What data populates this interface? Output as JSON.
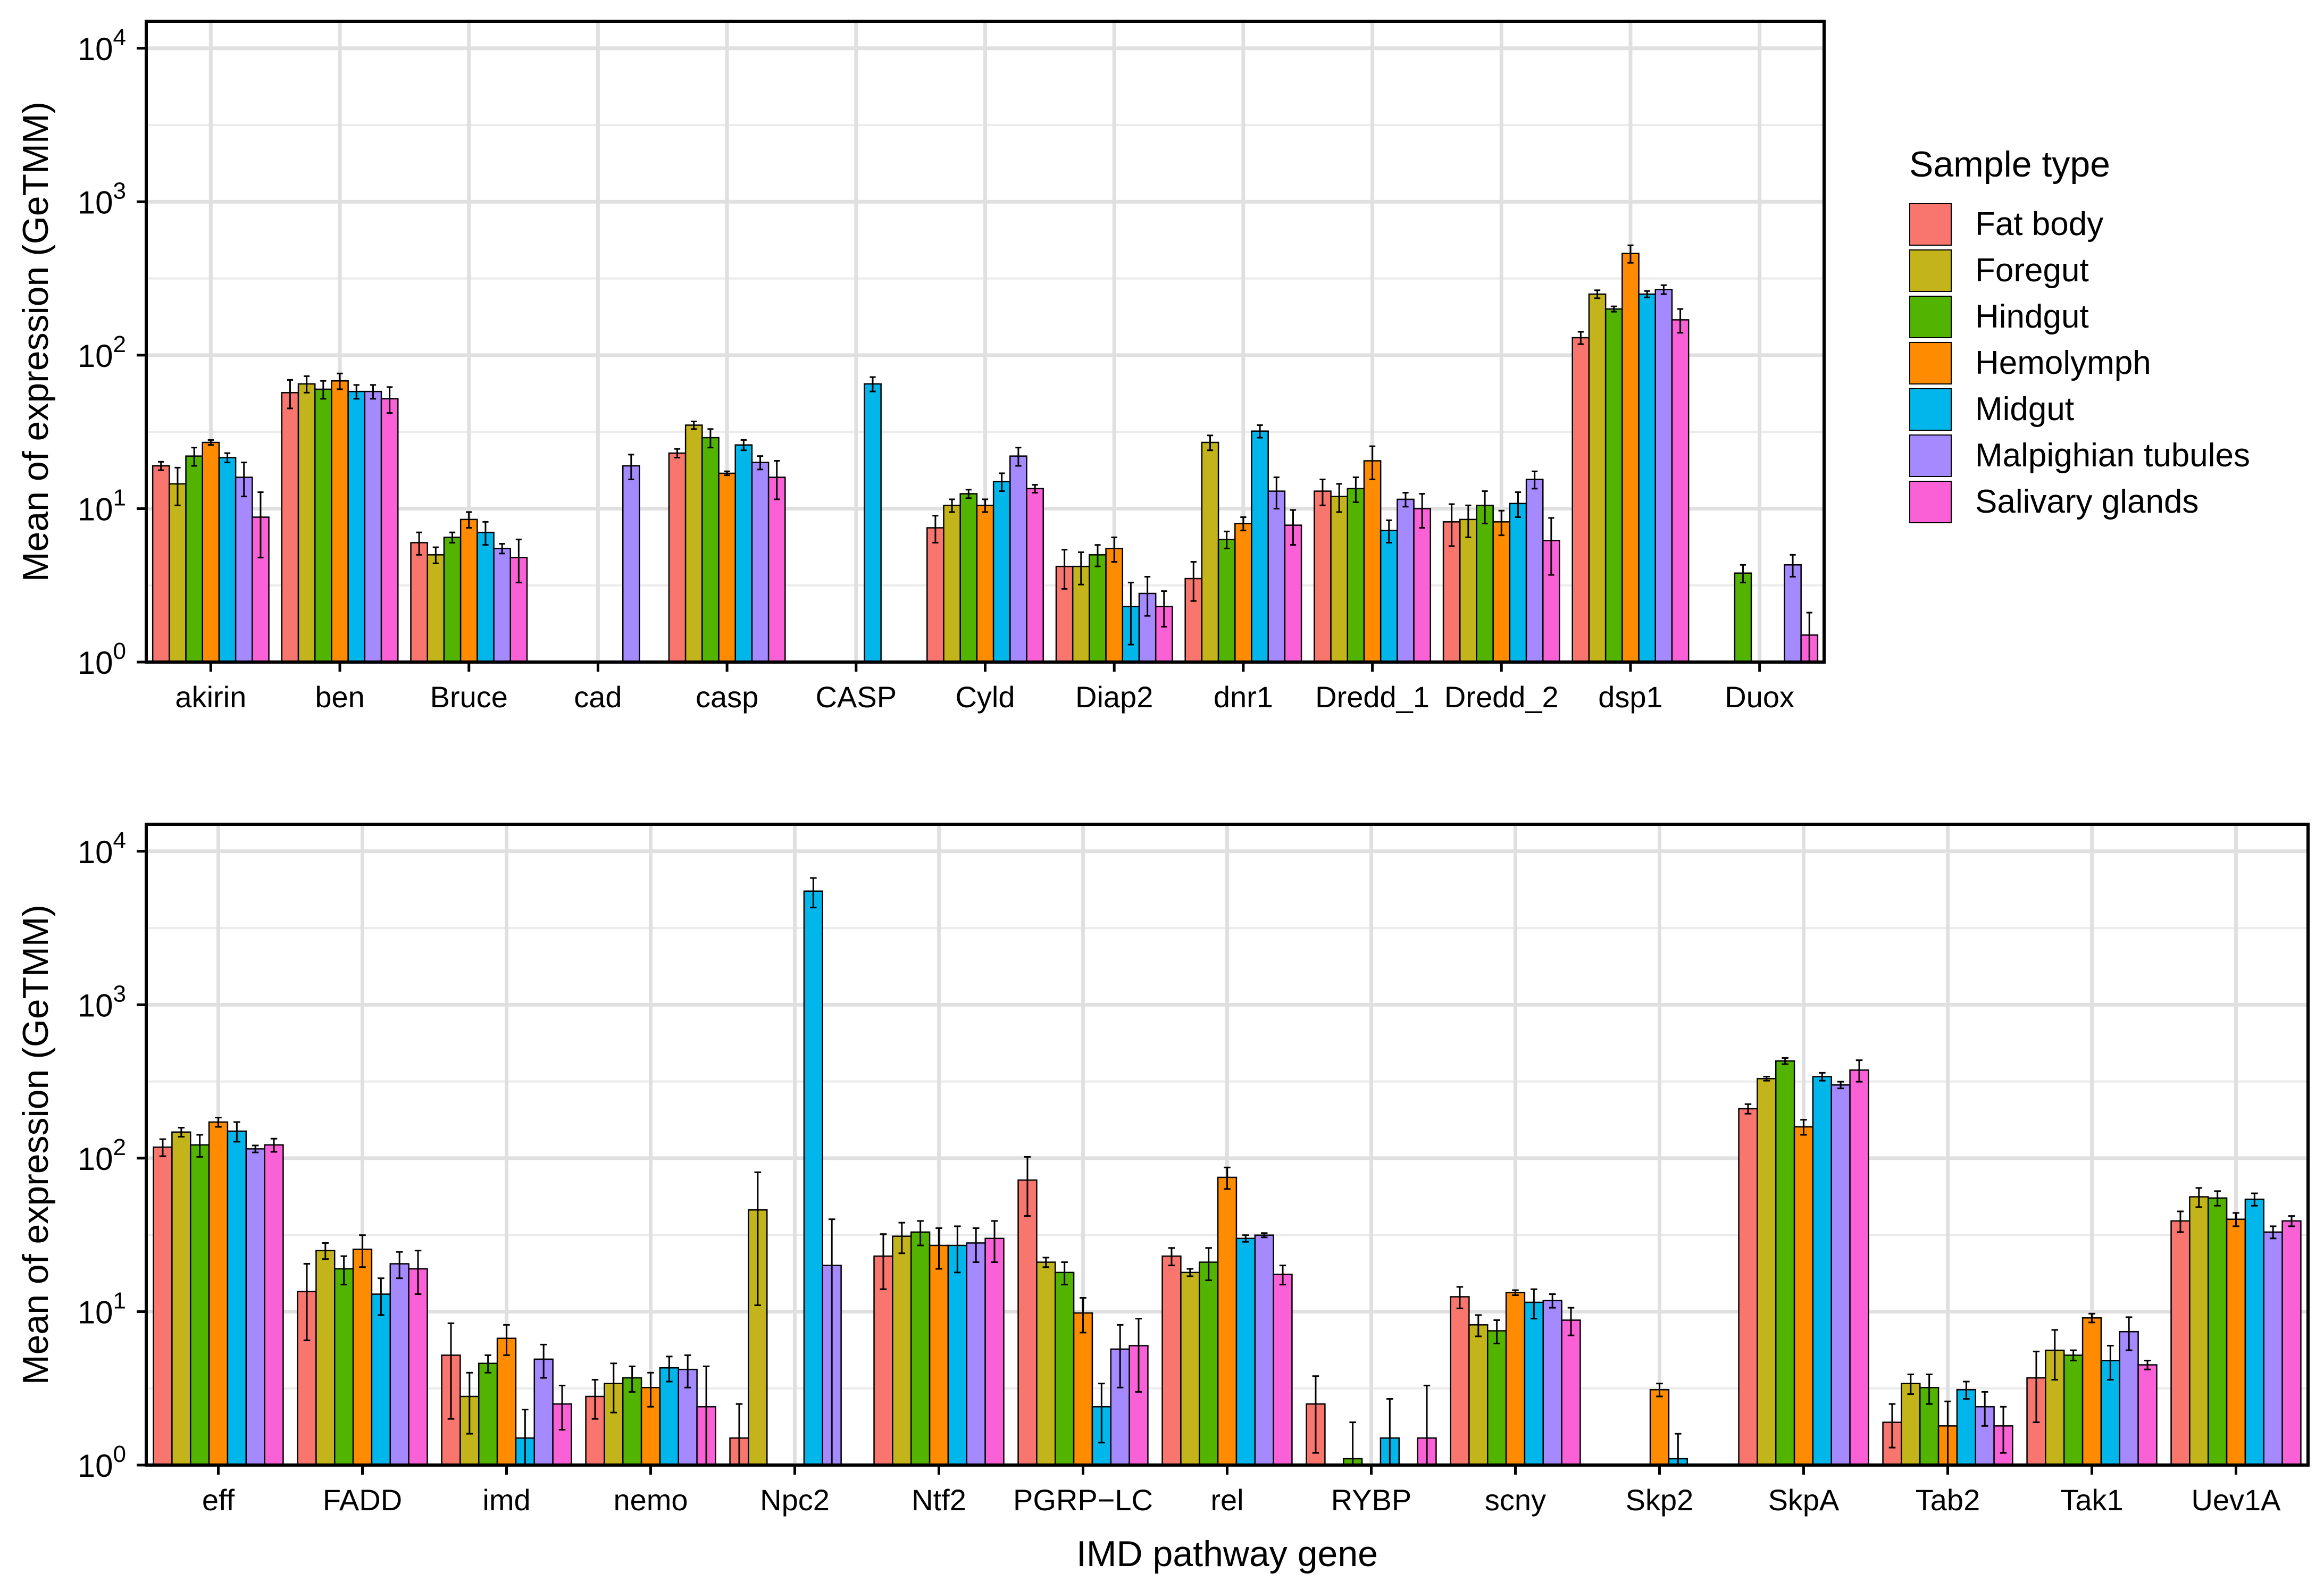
{
  "chart_data": [
    {
      "type": "bar",
      "panel": "top",
      "scale": "log10",
      "ylabel": "Mean of expression (GeTMM)",
      "xlabel": "",
      "ylim": [
        1,
        15000
      ],
      "y_ticks": [
        {
          "value": 1,
          "base": "10",
          "exp": "0"
        },
        {
          "value": 10,
          "base": "10",
          "exp": "1"
        },
        {
          "value": 100,
          "base": "10",
          "exp": "2"
        },
        {
          "value": 1000,
          "base": "10",
          "exp": "3"
        },
        {
          "value": 10000,
          "base": "10",
          "exp": "4"
        }
      ],
      "grid": true,
      "categories": [
        "akirin",
        "ben",
        "Bruce",
        "cad",
        "casp",
        "CASP",
        "Cyld",
        "Diap2",
        "dnr1",
        "Dredd_1",
        "Dredd_2",
        "dsp1",
        "Duox"
      ],
      "series": [
        {
          "name": "Fat body",
          "values": [
            19,
            57,
            6,
            null,
            23,
            null,
            7.5,
            4.2,
            3.5,
            13,
            8.2,
            130,
            null
          ],
          "errors": [
            1.2,
            12,
            1,
            null,
            1.5,
            null,
            1.5,
            1.2,
            1,
            2.5,
            2.5,
            12,
            null
          ]
        },
        {
          "name": "Foregut",
          "values": [
            14.5,
            65,
            5,
            null,
            35,
            null,
            10.5,
            4.2,
            27,
            12,
            8.5,
            250,
            null
          ],
          "errors": [
            4,
            8,
            0.6,
            null,
            2,
            null,
            1,
            1,
            3,
            2.5,
            2,
            15,
            null
          ]
        },
        {
          "name": "Hindgut",
          "values": [
            22,
            60,
            6.5,
            null,
            29,
            null,
            12.5,
            5,
            6.3,
            13.5,
            10.5,
            200,
            3.8
          ],
          "errors": [
            3,
            8,
            0.5,
            null,
            4,
            null,
            0.8,
            0.8,
            0.8,
            2.5,
            2.5,
            8,
            0.5
          ]
        },
        {
          "name": "Hemolymph",
          "values": [
            27,
            68,
            8.5,
            null,
            17,
            null,
            10.5,
            5.5,
            8,
            20.5,
            8.2,
            460,
            null
          ],
          "errors": [
            1,
            8,
            1,
            null,
            0.5,
            null,
            1,
            1,
            0.8,
            5,
            1.5,
            60,
            null
          ]
        },
        {
          "name": "Midgut",
          "values": [
            21.5,
            58,
            7,
            null,
            26,
            65,
            15,
            2.3,
            32,
            7.2,
            10.8,
            250,
            null
          ],
          "errors": [
            1.5,
            6,
            1.2,
            null,
            2,
            7,
            2,
            1,
            3,
            1.2,
            2,
            12,
            null
          ]
        },
        {
          "name": "Malpighian tubules",
          "values": [
            16,
            58,
            5.5,
            19,
            20,
            null,
            22,
            2.8,
            13,
            11.5,
            15.5,
            268,
            4.3
          ],
          "errors": [
            4,
            6,
            0.4,
            3.5,
            2,
            null,
            3,
            0.8,
            3,
            1.2,
            2,
            18,
            0.7
          ]
        },
        {
          "name": "Salivary glands",
          "values": [
            8.8,
            52,
            4.8,
            null,
            16,
            null,
            13.5,
            2.3,
            7.8,
            10,
            6.2,
            170,
            1.5
          ],
          "errors": [
            4,
            10,
            1.5,
            null,
            4.5,
            null,
            0.8,
            0.6,
            2,
            2.5,
            2.5,
            30,
            0.6
          ]
        }
      ]
    },
    {
      "type": "bar",
      "panel": "bottom",
      "scale": "log10",
      "ylabel": "Mean of expression (GeTMM)",
      "xlabel": "IMD pathway gene",
      "ylim": [
        1,
        15000
      ],
      "y_ticks": [
        {
          "value": 1,
          "base": "10",
          "exp": "0"
        },
        {
          "value": 10,
          "base": "10",
          "exp": "1"
        },
        {
          "value": 100,
          "base": "10",
          "exp": "2"
        },
        {
          "value": 1000,
          "base": "10",
          "exp": "3"
        },
        {
          "value": 10000,
          "base": "10",
          "exp": "4"
        }
      ],
      "grid": true,
      "categories": [
        "eff",
        "FADD",
        "imd",
        "nemo",
        "Npc2",
        "Ntf2",
        "PGRP−LC",
        "rel",
        "RYBP",
        "scny",
        "Skp2",
        "SkpA",
        "Tab2",
        "Tak1",
        "Uev1A"
      ],
      "series": [
        {
          "name": "Fat body",
          "values": [
            118,
            13.5,
            5.2,
            2.8,
            1.5,
            23,
            72,
            23,
            2.5,
            12.5,
            null,
            210,
            1.9,
            3.7,
            39
          ],
          "errors": [
            15,
            7,
            3.2,
            0.8,
            1,
            9,
            30,
            3,
            1.3,
            2,
            null,
            15,
            0.6,
            1.8,
            6
          ]
        },
        {
          "name": "Foregut",
          "values": [
            148,
            25,
            2.8,
            3.4,
            46,
            31,
            21,
            18,
            null,
            8.2,
            null,
            330,
            3.4,
            5.6,
            56
          ],
          "errors": [
            10,
            3,
            1.2,
            1.2,
            35,
            7,
            1.5,
            1,
            null,
            1.3,
            null,
            10,
            0.5,
            2,
            8
          ]
        },
        {
          "name": "Hindgut",
          "values": [
            122,
            19,
            4.6,
            3.7,
            null,
            33,
            18,
            21,
            1.1,
            7.5,
            null,
            430,
            3.2,
            5.2,
            55
          ],
          "errors": [
            20,
            4,
            0.6,
            0.7,
            null,
            6,
            3,
            5,
            0.8,
            1.3,
            null,
            20,
            0.7,
            0.4,
            6
          ]
        },
        {
          "name": "Hemolymph",
          "values": [
            172,
            25.5,
            6.7,
            3.2,
            null,
            27,
            9.8,
            75,
            null,
            13.3,
            3.1,
            160,
            1.8,
            9.1,
            40
          ],
          "errors": [
            12,
            6,
            1.5,
            0.8,
            null,
            8,
            2.5,
            12,
            null,
            0.5,
            0.3,
            18,
            0.8,
            0.6,
            4
          ]
        },
        {
          "name": "Midgut",
          "values": [
            150,
            13,
            1.5,
            4.3,
            5500,
            27,
            2.4,
            30,
            1.5,
            11.5,
            1.1,
            340,
            3.1,
            4.8,
            54
          ],
          "errors": [
            22,
            3.5,
            0.8,
            0.8,
            1200,
            9,
            1,
            1.5,
            1.2,
            2.5,
            0.5,
            20,
            0.4,
            1.2,
            5
          ]
        },
        {
          "name": "Malpighian tubules",
          "values": [
            115,
            20.5,
            4.9,
            4.2,
            20,
            28,
            5.7,
            31.5,
            null,
            11.8,
            null,
            300,
            2.4,
            7.4,
            33
          ],
          "errors": [
            6,
            4,
            1.2,
            1,
            20,
            7,
            2.5,
            1,
            null,
            1.2,
            null,
            15,
            0.6,
            1.8,
            3
          ]
        },
        {
          "name": "Salivary glands",
          "values": [
            122,
            19,
            2.5,
            2.4,
            null,
            30,
            6,
            17.5,
            1.5,
            8.8,
            null,
            375,
            1.8,
            4.5,
            39
          ],
          "errors": [
            12,
            6,
            0.8,
            2,
            null,
            9,
            3,
            2.5,
            1.8,
            1.8,
            null,
            60,
            0.6,
            0.3,
            3
          ]
        }
      ]
    }
  ],
  "legend": {
    "title": "Sample type",
    "items": [
      {
        "label": "Fat body",
        "color": "#F8766D"
      },
      {
        "label": "Foregut",
        "color": "#C4B41C"
      },
      {
        "label": "Hindgut",
        "color": "#53B400"
      },
      {
        "label": "Hemolymph",
        "color": "#FF8C00"
      },
      {
        "label": "Midgut",
        "color": "#00B6EB"
      },
      {
        "label": "Malpighian tubules",
        "color": "#A58AFF"
      },
      {
        "label": "Salivary glands",
        "color": "#FB61D7"
      }
    ]
  }
}
